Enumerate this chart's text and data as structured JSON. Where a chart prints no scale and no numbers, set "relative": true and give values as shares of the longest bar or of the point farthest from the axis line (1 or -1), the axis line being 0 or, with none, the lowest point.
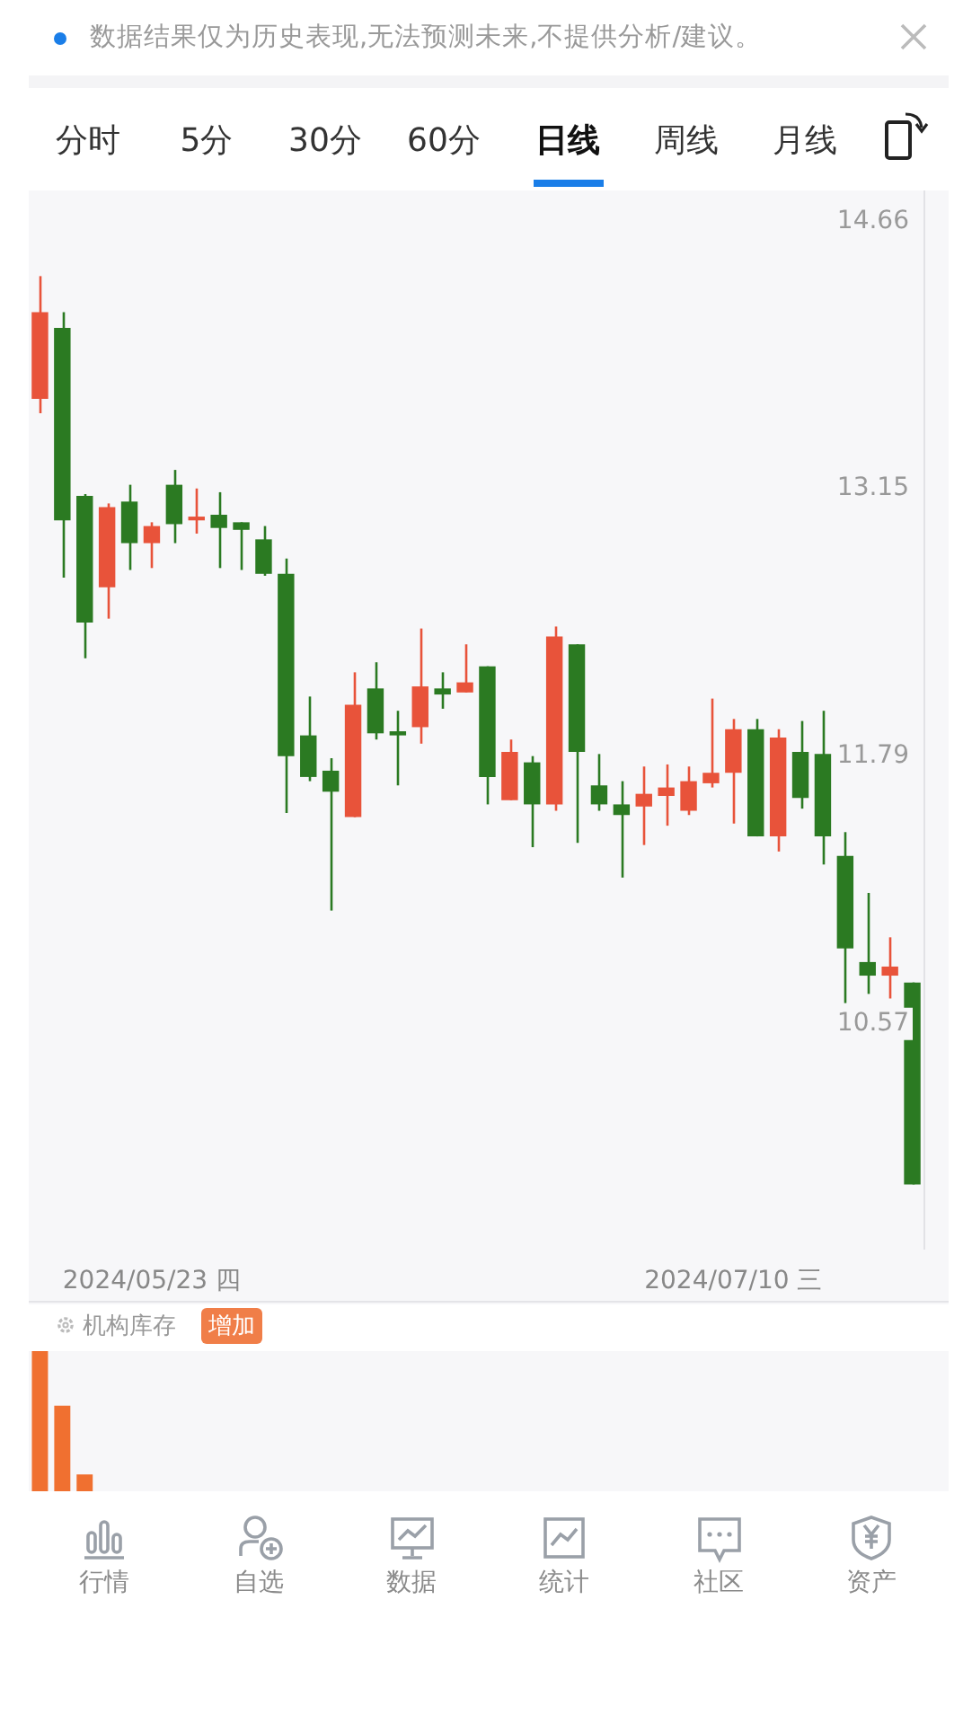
{
  "chart_data": [
    {
      "type": "candlestick",
      "log": "y",
      "grid": false,
      "annotations": [
        "数据结果仅为历史表现,无法预测未来,不提供分析/建议。",
        "分时",
        "5分",
        "30分",
        "60分",
        "日线",
        "周线",
        "月线",
        "行情",
        "自选",
        "数据",
        "统计",
        "社区",
        "资产"
      ],
      "categories": [
        null,
        null,
        null,
        null,
        null,
        "2024/05/23 四",
        null,
        null,
        null,
        null,
        null,
        null,
        null,
        null,
        null,
        null,
        null,
        null,
        null,
        null,
        null,
        null,
        null,
        null,
        null,
        null,
        null,
        null,
        null,
        null,
        null,
        "2024/07/10 三",
        null,
        null,
        null,
        null,
        null,
        null,
        null,
        null
      ],
      "ohlc": [
        [
          13.64,
          14.34,
          13.56,
          14.13
        ],
        [
          14.04,
          14.13,
          12.68,
          12.98
        ],
        [
          13.11,
          13.12,
          12.27,
          12.45
        ],
        [
          12.63,
          13.07,
          12.47,
          13.05
        ],
        [
          13.08,
          13.17,
          12.72,
          12.86
        ],
        [
          12.86,
          12.97,
          12.73,
          12.95
        ],
        [
          13.17,
          13.25,
          12.86,
          12.96
        ],
        [
          12.98,
          13.15,
          12.91,
          13.0
        ],
        [
          13.01,
          13.13,
          12.73,
          12.94
        ],
        [
          12.97,
          12.97,
          12.72,
          12.93
        ],
        [
          12.88,
          12.95,
          12.69,
          12.7
        ],
        [
          12.7,
          12.78,
          11.52,
          11.79
        ],
        [
          11.89,
          12.08,
          11.67,
          11.69
        ],
        [
          11.72,
          11.78,
          11.07,
          11.62
        ],
        [
          11.5,
          12.2,
          11.5,
          12.04
        ],
        [
          12.12,
          12.25,
          11.87,
          11.9
        ],
        [
          11.91,
          12.01,
          11.65,
          11.89
        ],
        [
          11.93,
          12.42,
          11.85,
          12.13
        ],
        [
          12.12,
          12.2,
          12.02,
          12.09
        ],
        [
          12.1,
          12.34,
          12.1,
          12.15
        ],
        [
          12.23,
          12.23,
          11.56,
          11.69
        ],
        [
          11.58,
          11.87,
          11.58,
          11.81
        ],
        [
          11.76,
          11.79,
          11.36,
          11.56
        ],
        [
          11.56,
          12.43,
          11.53,
          12.38
        ],
        [
          12.34,
          12.34,
          11.38,
          11.81
        ],
        [
          11.65,
          11.8,
          11.53,
          11.56
        ],
        [
          11.56,
          11.67,
          11.22,
          11.51
        ],
        [
          11.55,
          11.74,
          11.37,
          11.61
        ],
        [
          11.6,
          11.75,
          11.46,
          11.64
        ],
        [
          11.53,
          11.74,
          11.51,
          11.67
        ],
        [
          11.66,
          12.07,
          11.64,
          11.71
        ],
        [
          11.71,
          11.97,
          11.47,
          11.92
        ],
        [
          11.92,
          11.97,
          11.41,
          11.41
        ],
        [
          11.41,
          11.92,
          11.34,
          11.88
        ],
        [
          11.81,
          11.96,
          11.54,
          11.59
        ],
        [
          11.8,
          12.01,
          11.28,
          11.41
        ],
        [
          11.32,
          11.43,
          10.66,
          10.9
        ],
        [
          10.84,
          11.15,
          10.7,
          10.78
        ],
        [
          10.78,
          10.95,
          10.68,
          10.82
        ],
        [
          10.75,
          10.75,
          9.9,
          9.9
        ]
      ],
      "colors": [
        "#e8533a",
        "#2b7a22",
        "#2b7a22",
        "#e8533a",
        "#2b7a22",
        "#e8533a",
        "#2b7a22",
        "#e8533a",
        "#2b7a22",
        "#2b7a22",
        "#2b7a22",
        "#2b7a22",
        "#2b7a22",
        "#2b7a22",
        "#e8533a",
        "#2b7a22",
        "#2b7a22",
        "#e8533a",
        "#2b7a22",
        "#e8533a",
        "#2b7a22",
        "#e8533a",
        "#2b7a22",
        "#e8533a",
        "#2b7a22",
        "#2b7a22",
        "#2b7a22",
        "#e8533a",
        "#e8533a",
        "#e8533a",
        "#e8533a",
        "#e8533a",
        "#2b7a22",
        "#e8533a",
        "#2b7a22",
        "#2b7a22",
        "#2b7a22",
        "#2b7a22",
        "#e8533a",
        "#2b7a22"
      ],
      "ylim": [
        9.64,
        14.85
      ],
      "yticks": [
        14.66,
        13.15,
        11.79,
        10.57
      ]
    },
    {
      "type": "bar",
      "relative": true,
      "title": "机构库存",
      "annotations": [
        "增加"
      ],
      "color": "#f07030",
      "categories": [
        null,
        null,
        null,
        null,
        null,
        null,
        null,
        null,
        null,
        null,
        null,
        null,
        null,
        null,
        null,
        null,
        null,
        null,
        null,
        null,
        null,
        null,
        null,
        null,
        null,
        null,
        null,
        null,
        null,
        null,
        null,
        null,
        null,
        null,
        null,
        null,
        null,
        null,
        null,
        null
      ],
      "values": [
        1,
        0.61,
        0.12,
        null,
        null,
        null,
        null,
        null,
        null,
        null,
        null,
        null,
        null,
        null,
        null,
        null,
        null,
        null,
        null,
        null,
        null,
        null,
        null,
        null,
        null,
        null,
        null,
        null,
        null,
        null,
        null,
        null,
        null,
        null,
        null,
        null,
        null,
        null,
        null,
        null
      ]
    }
  ]
}
